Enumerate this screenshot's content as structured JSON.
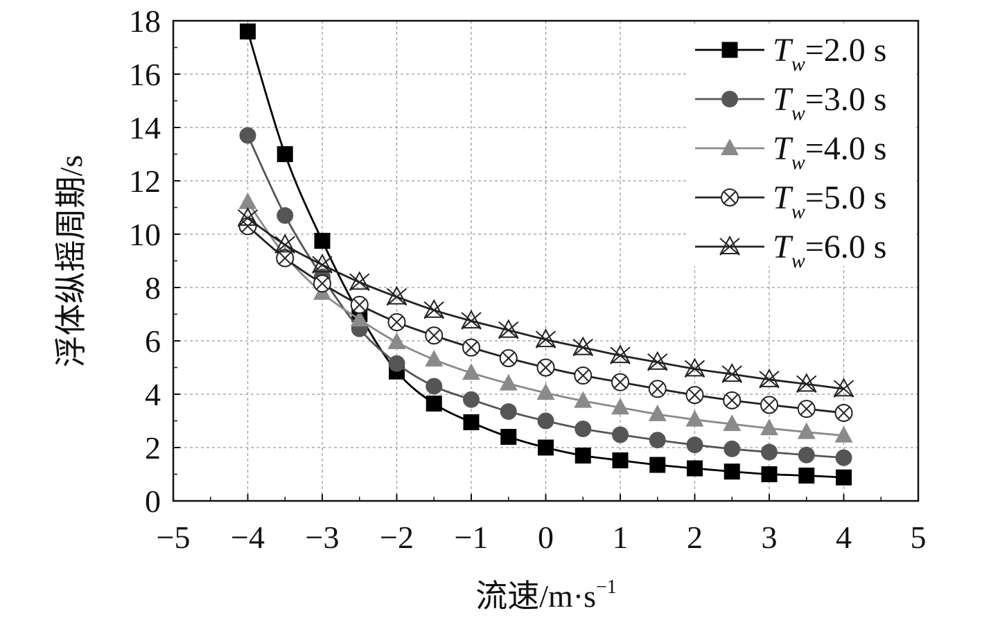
{
  "chart_data": {
    "type": "line",
    "title": "",
    "xlabel": "流速/m·s",
    "xlabel_sup": "−1",
    "ylabel": "浮体纵摇周期/s",
    "xlim": [
      -5,
      5
    ],
    "ylim": [
      0,
      18
    ],
    "x_ticks": [
      -5,
      -4,
      -3,
      -2,
      -1,
      0,
      1,
      2,
      3,
      4,
      5
    ],
    "x_tick_labels": [
      "−5",
      "−4",
      "−3",
      "−2",
      "−1",
      "0",
      "1",
      "2",
      "3",
      "4",
      "5"
    ],
    "y_ticks": [
      0,
      2,
      4,
      6,
      8,
      10,
      12,
      14,
      16,
      18
    ],
    "y_tick_labels": [
      "0",
      "2",
      "4",
      "6",
      "8",
      "10",
      "12",
      "14",
      "16",
      "18"
    ],
    "grid": true,
    "legend_position": "top-right",
    "x": [
      -4,
      -3.5,
      -3,
      -2.5,
      -2,
      -1.5,
      -1,
      -0.5,
      0,
      0.5,
      1,
      1.5,
      2,
      2.5,
      3,
      3.5,
      4
    ],
    "series": [
      {
        "name_prefix": "T",
        "name_sub": "w",
        "name_value": "=2.0 s",
        "marker": "square",
        "color": "#000000",
        "values": [
          17.6,
          13.0,
          9.75,
          7.0,
          4.85,
          3.65,
          2.95,
          2.4,
          2.0,
          1.7,
          1.52,
          1.35,
          1.22,
          1.1,
          1.0,
          0.95,
          0.88
        ]
      },
      {
        "name_prefix": "T",
        "name_sub": "w",
        "name_value": "=3.0 s",
        "marker": "circle",
        "color": "#555555",
        "values": [
          13.7,
          10.7,
          8.4,
          6.45,
          5.15,
          4.3,
          3.8,
          3.35,
          3.0,
          2.7,
          2.48,
          2.28,
          2.1,
          1.95,
          1.83,
          1.72,
          1.62
        ]
      },
      {
        "name_prefix": "T",
        "name_sub": "w",
        "name_value": "=4.0 s",
        "marker": "triangle",
        "color": "#8a8a8a",
        "values": [
          11.2,
          9.2,
          7.8,
          6.8,
          5.95,
          5.3,
          4.8,
          4.4,
          4.05,
          3.75,
          3.5,
          3.25,
          3.05,
          2.88,
          2.72,
          2.58,
          2.45
        ]
      },
      {
        "name_prefix": "T",
        "name_sub": "w",
        "name_value": "=5.0 s",
        "marker": "circle-x",
        "color": "#222222",
        "values": [
          10.3,
          9.1,
          8.15,
          7.35,
          6.7,
          6.2,
          5.75,
          5.35,
          5.0,
          4.7,
          4.45,
          4.2,
          3.97,
          3.77,
          3.6,
          3.45,
          3.3
        ]
      },
      {
        "name_prefix": "T",
        "name_sub": "w",
        "name_value": "=6.0 s",
        "marker": "star-x",
        "color": "#222222",
        "values": [
          10.6,
          9.6,
          8.85,
          8.2,
          7.65,
          7.15,
          6.75,
          6.4,
          6.05,
          5.75,
          5.45,
          5.2,
          4.95,
          4.75,
          4.55,
          4.38,
          4.2
        ]
      }
    ]
  }
}
